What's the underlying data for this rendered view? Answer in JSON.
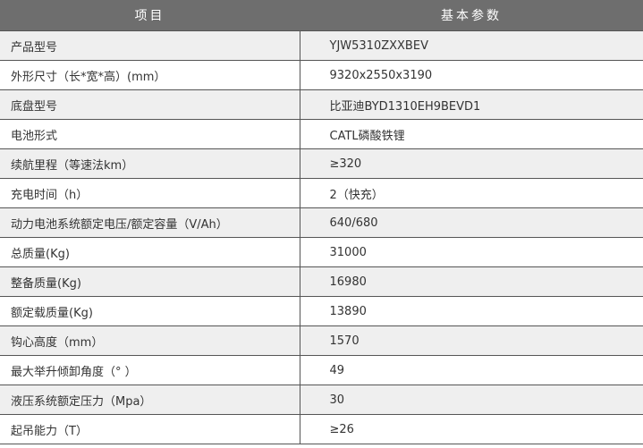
{
  "header": {
    "item": "项目",
    "param": "基本参数"
  },
  "rows": [
    {
      "label": "产品型号",
      "value": "YJW5310ZXXBEV"
    },
    {
      "label": "外形尺寸（长*宽*高）(mm）",
      "value": "9320x2550x3190"
    },
    {
      "label": "底盘型号",
      "value": "比亚迪BYD1310EH9BEVD1"
    },
    {
      "label": "电池形式",
      "value": "CATL磷酸铁锂"
    },
    {
      "label": "续航里程（等速法km）",
      "value": "≥320"
    },
    {
      "label": "充电时间（h）",
      "value": "2（快充）"
    },
    {
      "label": "动力电池系统额定电压/额定容量（V/Ah）",
      "value": "640/680"
    },
    {
      "label": "总质量(Kg)",
      "value": "31000"
    },
    {
      "label": "整备质量(Kg)",
      "value": "16980"
    },
    {
      "label": "额定载质量(Kg)",
      "value": "13890"
    },
    {
      "label": "钩心高度（mm）",
      "value": "1570"
    },
    {
      "label": "最大举升倾卸角度（°  ）",
      "value": "49"
    },
    {
      "label": "液压系统额定压力（Mpa）",
      "value": "30"
    },
    {
      "label": "起吊能力（T）",
      "value": "≥26"
    }
  ]
}
